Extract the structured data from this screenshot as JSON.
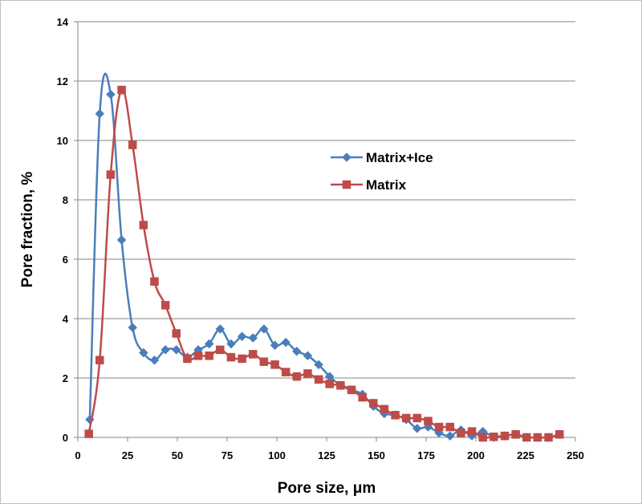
{
  "chart_data": {
    "type": "line",
    "xlabel": "Pore size, μm",
    "ylabel": "Pore fraction, %",
    "xlim": [
      0,
      250
    ],
    "ylim": [
      0,
      14
    ],
    "x_ticks": [
      "0",
      "25",
      "50",
      "75",
      "100",
      "125",
      "150",
      "175",
      "200",
      "225",
      "250"
    ],
    "y_ticks": [
      "0",
      "2",
      "4",
      "6",
      "8",
      "10",
      "12",
      "14"
    ],
    "grid": "horizontal",
    "legend": "center-right",
    "series": [
      {
        "name": "Matrix+Ice",
        "color": "#4a7ebb",
        "marker": "diamond",
        "points": [
          [
            6,
            0.6
          ],
          [
            11,
            10.9
          ],
          [
            16.5,
            11.55
          ],
          [
            22,
            6.65
          ],
          [
            27.5,
            3.7
          ],
          [
            33,
            2.85
          ],
          [
            38.5,
            2.6
          ],
          [
            44,
            2.95
          ],
          [
            49.5,
            2.95
          ],
          [
            55,
            2.7
          ],
          [
            60.5,
            2.95
          ],
          [
            66,
            3.15
          ],
          [
            71.5,
            3.65
          ],
          [
            77,
            3.15
          ],
          [
            82.5,
            3.4
          ],
          [
            88,
            3.35
          ],
          [
            93.5,
            3.65
          ],
          [
            99,
            3.1
          ],
          [
            104.5,
            3.2
          ],
          [
            110,
            2.9
          ],
          [
            115.5,
            2.75
          ],
          [
            121,
            2.45
          ],
          [
            126.5,
            2.05
          ],
          [
            132,
            1.75
          ],
          [
            137.5,
            1.6
          ],
          [
            143,
            1.45
          ],
          [
            148.5,
            1.05
          ],
          [
            154,
            0.8
          ],
          [
            159.5,
            0.75
          ],
          [
            165,
            0.6
          ],
          [
            170.5,
            0.3
          ],
          [
            176,
            0.35
          ],
          [
            181.5,
            0.15
          ],
          [
            187,
            0.05
          ],
          [
            192.5,
            0.25
          ],
          [
            198,
            0.05
          ],
          [
            203.5,
            0.2
          ],
          [
            209,
            0.0
          ],
          [
            214.5,
            0.05
          ],
          [
            220,
            0.1
          ],
          [
            225.5,
            0.0
          ],
          [
            231,
            0.0
          ],
          [
            236.5,
            0.0
          ],
          [
            242,
            0.1
          ]
        ]
      },
      {
        "name": "Matrix",
        "color": "#be4b48",
        "marker": "square",
        "points": [
          [
            5.5,
            0.12
          ],
          [
            11,
            2.6
          ],
          [
            16.5,
            8.85
          ],
          [
            22,
            11.7
          ],
          [
            27.5,
            9.85
          ],
          [
            33,
            7.15
          ],
          [
            38.5,
            5.25
          ],
          [
            44,
            4.45
          ],
          [
            49.5,
            3.5
          ],
          [
            55,
            2.65
          ],
          [
            60.5,
            2.75
          ],
          [
            66,
            2.75
          ],
          [
            71.5,
            2.95
          ],
          [
            77,
            2.7
          ],
          [
            82.5,
            2.65
          ],
          [
            88,
            2.8
          ],
          [
            93.5,
            2.55
          ],
          [
            99,
            2.45
          ],
          [
            104.5,
            2.2
          ],
          [
            110,
            2.05
          ],
          [
            115.5,
            2.15
          ],
          [
            121,
            1.95
          ],
          [
            126.5,
            1.8
          ],
          [
            132,
            1.75
          ],
          [
            137.5,
            1.6
          ],
          [
            143,
            1.35
          ],
          [
            148.5,
            1.15
          ],
          [
            154,
            0.95
          ],
          [
            159.5,
            0.75
          ],
          [
            165,
            0.65
          ],
          [
            170.5,
            0.65
          ],
          [
            176,
            0.55
          ],
          [
            181.5,
            0.35
          ],
          [
            187,
            0.35
          ],
          [
            192.5,
            0.15
          ],
          [
            198,
            0.2
          ],
          [
            203.5,
            0.0
          ],
          [
            209,
            0.02
          ],
          [
            214.5,
            0.05
          ],
          [
            220,
            0.1
          ],
          [
            225.5,
            0.0
          ],
          [
            231,
            0.0
          ],
          [
            236.5,
            0.0
          ],
          [
            242,
            0.1
          ]
        ]
      }
    ]
  }
}
